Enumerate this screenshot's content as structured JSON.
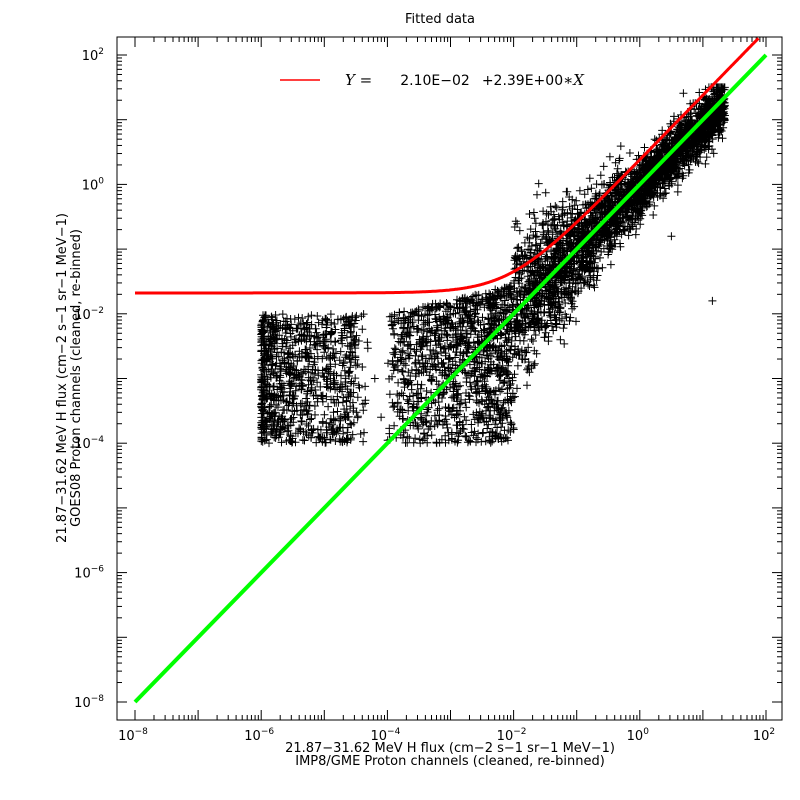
{
  "chart_data": {
    "type": "scatter",
    "title": "Fitted data",
    "xlabel": "21.87−31.62 MeV H flux (cm−2 s−1 sr−1 MeV−1)",
    "xlabel2": "IMP8/GME Proton channels (cleaned, re-binned)",
    "ylabel": "21.87−31.62 MeV H flux (cm−2 s−1 sr−1 MeV−1)",
    "ylabel2": "GOES08 Proton channels (cleaned, re-binned)",
    "x_scale": "log",
    "y_scale": "log",
    "xlim": [
      1e-08,
      200
    ],
    "ylim": [
      1e-08,
      200
    ],
    "x_ticks": [
      {
        "base": "10",
        "exp": "−8",
        "value": 1e-08
      },
      {
        "base": "10",
        "exp": "−6",
        "value": 1e-06
      },
      {
        "base": "10",
        "exp": "−4",
        "value": 0.0001
      },
      {
        "base": "10",
        "exp": "−2",
        "value": 0.01
      },
      {
        "base": "10",
        "exp": "0",
        "value": 1
      },
      {
        "base": "10",
        "exp": "2",
        "value": 100
      }
    ],
    "y_ticks": [
      {
        "base": "10",
        "exp": "−8",
        "value": 1e-08
      },
      {
        "base": "10",
        "exp": "−6",
        "value": 1e-06
      },
      {
        "base": "10",
        "exp": "−4",
        "value": 0.0001
      },
      {
        "base": "10",
        "exp": "−2",
        "value": 0.01
      },
      {
        "base": "10",
        "exp": "0",
        "value": 1
      },
      {
        "base": "10",
        "exp": "2",
        "value": 100
      }
    ],
    "fit": {
      "name_prefix": "Y =",
      "intercept_text": "2.10E−02",
      "slope_text": "+2.39E+00",
      "var_text": "∗X",
      "intercept": 0.021,
      "slope": 2.39,
      "color": "#ff0000"
    },
    "identity_line": {
      "color": "#00ff00",
      "x_range": [
        1e-08,
        100
      ]
    },
    "scatter_clusters": [
      {
        "x_range": [
          1e-06,
          3e-05
        ],
        "y_range": [
          0.0001,
          0.01
        ],
        "model": "uniform"
      },
      {
        "x_range": [
          0.0001,
          20
        ],
        "y_range": [
          0.0001,
          30
        ],
        "model": "correlated"
      }
    ],
    "marker_color": "#000000",
    "marker": "+",
    "grid": false
  }
}
